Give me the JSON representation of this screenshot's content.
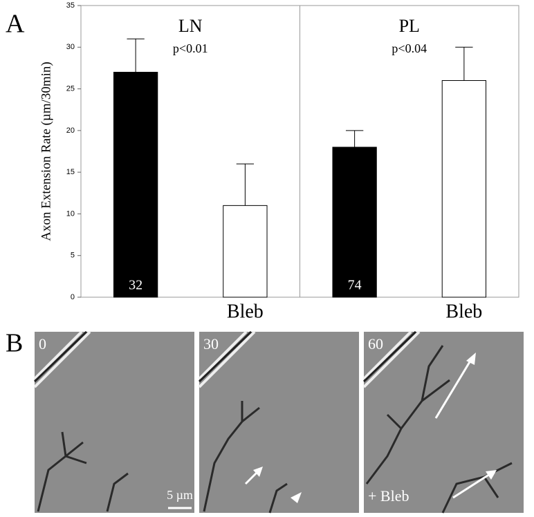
{
  "chart_data": {
    "type": "bar",
    "panel_label": "A",
    "ylabel": "Axon Extension Rate (µm/30min)",
    "groups": [
      {
        "title": "LN",
        "p": "p<0.01"
      },
      {
        "title": "PL",
        "p": "p<0.04"
      }
    ],
    "categories": [
      null,
      "Bleb",
      null,
      "Bleb"
    ],
    "values": [
      27,
      11,
      18,
      26
    ],
    "errors": [
      4,
      5,
      2,
      4
    ],
    "colors": [
      "#000000",
      "#ffffff",
      "#000000",
      "#ffffff"
    ],
    "n": [
      32,
      null,
      74,
      null
    ],
    "ylim": [
      0,
      35
    ],
    "yticks": [
      0,
      5,
      10,
      15,
      20,
      25,
      30,
      35
    ],
    "grid": false
  },
  "panel_b": {
    "panel_label": "B",
    "frames": [
      {
        "label": "0"
      },
      {
        "label": "30"
      },
      {
        "label": "60"
      }
    ],
    "scale_bar": "5 µm",
    "annotation": "+ Bleb"
  }
}
